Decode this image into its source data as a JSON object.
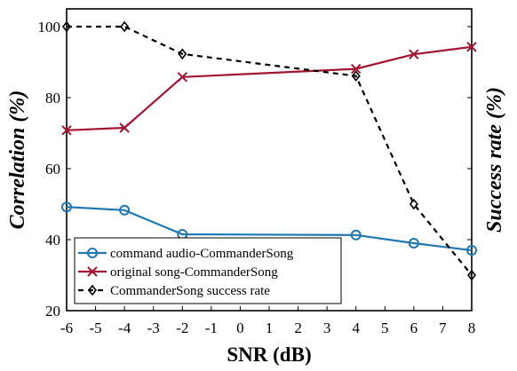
{
  "chart_data": {
    "type": "line",
    "xlabel": "SNR (dB)",
    "ylabel_left": "Correlation (%)",
    "ylabel_right": "Success rate (%)",
    "xlim": [
      -6,
      8
    ],
    "ylim": [
      20,
      105
    ],
    "xticks": [
      "-6",
      "-5",
      "-4",
      "-3",
      "-2",
      "-1",
      "0",
      "1",
      "2",
      "3",
      "4",
      "5",
      "6",
      "7",
      "8"
    ],
    "yticks": [
      "20",
      "40",
      "60",
      "80",
      "100"
    ],
    "grid": false,
    "legend_position": "bottom-left",
    "series": [
      {
        "name": "command audio-CommanderSong",
        "color": "#1f77b4",
        "line": "solid",
        "marker": "circle",
        "x": [
          -6,
          -4,
          -2,
          4,
          6,
          8
        ],
        "y": [
          49.2,
          48.3,
          41.5,
          41.3,
          39.0,
          37.0
        ]
      },
      {
        "name": "original song-CommanderSong",
        "color": "#a2142f",
        "line": "solid",
        "marker": "x",
        "x": [
          -6,
          -4,
          -2,
          4,
          6,
          8
        ],
        "y": [
          70.8,
          71.5,
          85.8,
          88.1,
          92.2,
          94.3
        ]
      },
      {
        "name": "CommanderSong success rate",
        "color": "#000000",
        "line": "dashed",
        "marker": "diamond",
        "x": [
          -6,
          -4,
          -2,
          4,
          6,
          8
        ],
        "y": [
          100,
          100,
          92.3,
          86.1,
          50.0,
          30.0
        ]
      }
    ]
  }
}
